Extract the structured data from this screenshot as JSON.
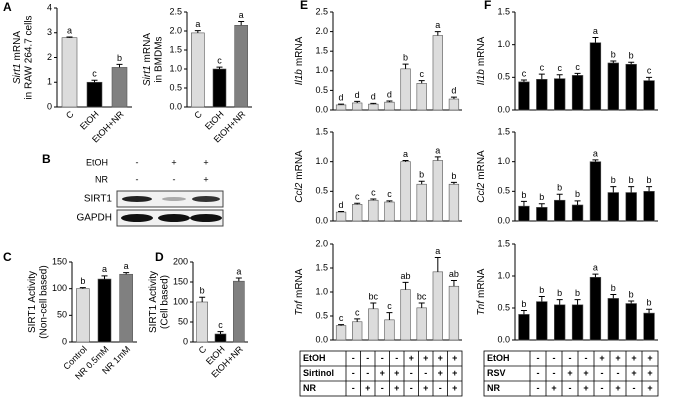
{
  "blot": {
    "label": "B",
    "treatments": [
      {
        "name": "EtOH",
        "signs": [
          "-",
          "+",
          "+"
        ]
      },
      {
        "name": "NR",
        "signs": [
          "-",
          "-",
          "+"
        ]
      }
    ],
    "rows": [
      "SIRT1",
      "GAPDH"
    ]
  },
  "chart_data": [
    {
      "type": "bar",
      "label": "A",
      "gene": "Sirt1",
      "ylabel": [
        "mRNA",
        "in RAW 264.7 cells"
      ],
      "categories": [
        "C",
        "EtOH",
        "EtOH+NR"
      ],
      "values": [
        2.8,
        1.0,
        1.6
      ],
      "errors": [
        0.03,
        0.08,
        0.12
      ],
      "significance": [
        "a",
        "c",
        "b"
      ],
      "colors": [
        "#dcdcdc",
        "#000000",
        "#808080"
      ],
      "ylim": [
        0,
        4
      ],
      "yticks": [
        0,
        1,
        2,
        3,
        4
      ]
    },
    {
      "type": "bar",
      "gene": "Sirt1",
      "ylabel": [
        "mRNA",
        "in BMDMs"
      ],
      "categories": [
        "C",
        "EtOH",
        "EtOH+NR"
      ],
      "values": [
        1.95,
        1.0,
        2.15
      ],
      "errors": [
        0.06,
        0.05,
        0.1
      ],
      "significance": [
        "a",
        "c",
        "a"
      ],
      "colors": [
        "#dcdcdc",
        "#000000",
        "#808080"
      ],
      "ylim": [
        0,
        2.5
      ],
      "yticks": [
        {
          "value": 0,
          "label": "0.0"
        },
        0.5,
        {
          "value": 1,
          "label": "1.0"
        },
        1.5,
        {
          "value": 2,
          "label": "2.0"
        },
        2.5
      ]
    },
    {
      "type": "bar",
      "label": "C",
      "ylabel": [
        "SIRT1 Activity",
        "(Non-cell based)"
      ],
      "categories": [
        "Control",
        "NR 0.5mM",
        "NR 1mM"
      ],
      "values": [
        100,
        118,
        127
      ],
      "errors": [
        2,
        6,
        3
      ],
      "significance": [
        "b",
        "a",
        "a"
      ],
      "colors": [
        "#dcdcdc",
        "#000000",
        "#808080"
      ],
      "ylim": [
        0,
        150
      ],
      "yticks": [
        0,
        50,
        100,
        150
      ]
    },
    {
      "type": "bar",
      "label": "D",
      "ylabel": [
        "SIRT1 Activity",
        "(Cell based)"
      ],
      "categories": [
        "C",
        "EtOH",
        "EtOH+NR"
      ],
      "values": [
        100,
        20,
        152
      ],
      "errors": [
        12,
        6,
        8
      ],
      "significance": [
        "b",
        "c",
        "a"
      ],
      "colors": [
        "#dcdcdc",
        "#000000",
        "#808080"
      ],
      "ylim": [
        0,
        200
      ],
      "yticks": [
        0,
        50,
        100,
        150,
        200
      ]
    },
    {
      "type": "bar",
      "label": "E",
      "gene": "Il1b",
      "ylabel": [
        "mRNA"
      ],
      "values": [
        0.13,
        0.18,
        0.15,
        0.2,
        1.05,
        0.68,
        1.9,
        0.28
      ],
      "errors": [
        0.02,
        0.04,
        0.02,
        0.03,
        0.12,
        0.07,
        0.1,
        0.05
      ],
      "significance": [
        "d",
        "d",
        "d",
        "d",
        "b",
        "c",
        "a",
        "d"
      ],
      "color": "#dcdcdc",
      "ylim": [
        0,
        2.5
      ],
      "yticks": [
        {
          "value": 0,
          "label": "0.0"
        },
        0.5,
        {
          "value": 1,
          "label": "1.0"
        },
        1.5,
        {
          "value": 2,
          "label": "2.0"
        },
        2.5
      ]
    },
    {
      "type": "bar",
      "gene": "Ccl2",
      "ylabel": [
        "mRNA"
      ],
      "values": [
        0.15,
        0.28,
        0.35,
        0.32,
        1.0,
        0.62,
        1.02,
        0.62
      ],
      "errors": [
        0.01,
        0.02,
        0.02,
        0.02,
        0.02,
        0.05,
        0.06,
        0.03
      ],
      "significance": [
        "d",
        "c",
        "c",
        "c",
        "a",
        "b",
        "a",
        "b"
      ],
      "color": "#dcdcdc",
      "ylim": [
        0,
        1.5
      ],
      "yticks": [
        {
          "value": 0,
          "label": "0.0"
        },
        0.5,
        {
          "value": 1,
          "label": "1.0"
        },
        1.5
      ]
    },
    {
      "type": "bar",
      "gene": "Tnf",
      "ylabel": [
        "mRNA"
      ],
      "values": [
        0.3,
        0.38,
        0.65,
        0.42,
        1.05,
        0.67,
        1.42,
        1.12
      ],
      "errors": [
        0.02,
        0.06,
        0.12,
        0.15,
        0.15,
        0.1,
        0.3,
        0.12
      ],
      "significance": [
        "c",
        "c",
        "bc",
        "c",
        "ab",
        "bc",
        "a",
        "ab"
      ],
      "color": "#dcdcdc",
      "ylim": [
        0,
        2
      ],
      "yticks": [
        {
          "value": 0,
          "label": "0.0"
        },
        0.5,
        {
          "value": 1,
          "label": "1.0"
        },
        1.5,
        {
          "value": 2,
          "label": "2.0"
        }
      ]
    },
    {
      "type": "bar",
      "label": "F",
      "gene": "Il1b",
      "ylabel": [
        "mRNA"
      ],
      "values": [
        0.43,
        0.47,
        0.48,
        0.53,
        1.03,
        0.72,
        0.7,
        0.45
      ],
      "errors": [
        0.03,
        0.08,
        0.06,
        0.03,
        0.08,
        0.03,
        0.03,
        0.05
      ],
      "significance": [
        "c",
        "c",
        "c",
        "c",
        "a",
        "b",
        "b",
        "c"
      ],
      "color": "#000000",
      "ylim": [
        0,
        1.5
      ],
      "yticks": [
        {
          "value": 0,
          "label": "0.0"
        },
        0.5,
        {
          "value": 1,
          "label": "1.0"
        },
        1.5
      ]
    },
    {
      "type": "bar",
      "gene": "Ccl2",
      "ylabel": [
        "mRNA"
      ],
      "values": [
        0.25,
        0.23,
        0.35,
        0.27,
        1.0,
        0.48,
        0.48,
        0.5
      ],
      "errors": [
        0.08,
        0.06,
        0.1,
        0.07,
        0.03,
        0.1,
        0.1,
        0.08
      ],
      "significance": [
        "b",
        "b",
        "b",
        "b",
        "a",
        "b",
        "b",
        "b"
      ],
      "color": "#000000",
      "ylim": [
        0,
        1.5
      ],
      "yticks": [
        {
          "value": 0,
          "label": "0.0"
        },
        0.5,
        {
          "value": 1,
          "label": "1.0"
        },
        1.5
      ]
    },
    {
      "type": "bar",
      "gene": "Tnf",
      "ylabel": [
        "mRNA"
      ],
      "values": [
        0.4,
        0.6,
        0.55,
        0.55,
        0.98,
        0.65,
        0.57,
        0.42
      ],
      "errors": [
        0.06,
        0.08,
        0.08,
        0.08,
        0.05,
        0.06,
        0.04,
        0.06
      ],
      "significance": [
        "b",
        "b",
        "b",
        "b",
        "a",
        "b",
        "b",
        "b"
      ],
      "color": "#000000",
      "ylim": [
        0,
        1.5
      ],
      "yticks": [
        {
          "value": 0,
          "label": "0.0"
        },
        0.5,
        {
          "value": 1,
          "label": "1.0"
        },
        1.5
      ]
    }
  ],
  "tables": [
    {
      "rows": [
        {
          "name": "EtOH",
          "signs": [
            "-",
            "-",
            "-",
            "-",
            "+",
            "+",
            "+",
            "+"
          ]
        },
        {
          "name": "Sirtinol",
          "signs": [
            "-",
            "-",
            "+",
            "+",
            "-",
            "-",
            "+",
            "+"
          ]
        },
        {
          "name": "NR",
          "signs": [
            "-",
            "+",
            "-",
            "+",
            "-",
            "+",
            "-",
            "+"
          ]
        }
      ]
    },
    {
      "rows": [
        {
          "name": "EtOH",
          "signs": [
            "-",
            "-",
            "-",
            "-",
            "+",
            "+",
            "+",
            "+"
          ]
        },
        {
          "name": "RSV",
          "signs": [
            "-",
            "-",
            "+",
            "+",
            "-",
            "-",
            "+",
            "+"
          ]
        },
        {
          "name": "NR",
          "signs": [
            "-",
            "+",
            "-",
            "+",
            "-",
            "+",
            "-",
            "+"
          ]
        }
      ]
    }
  ]
}
